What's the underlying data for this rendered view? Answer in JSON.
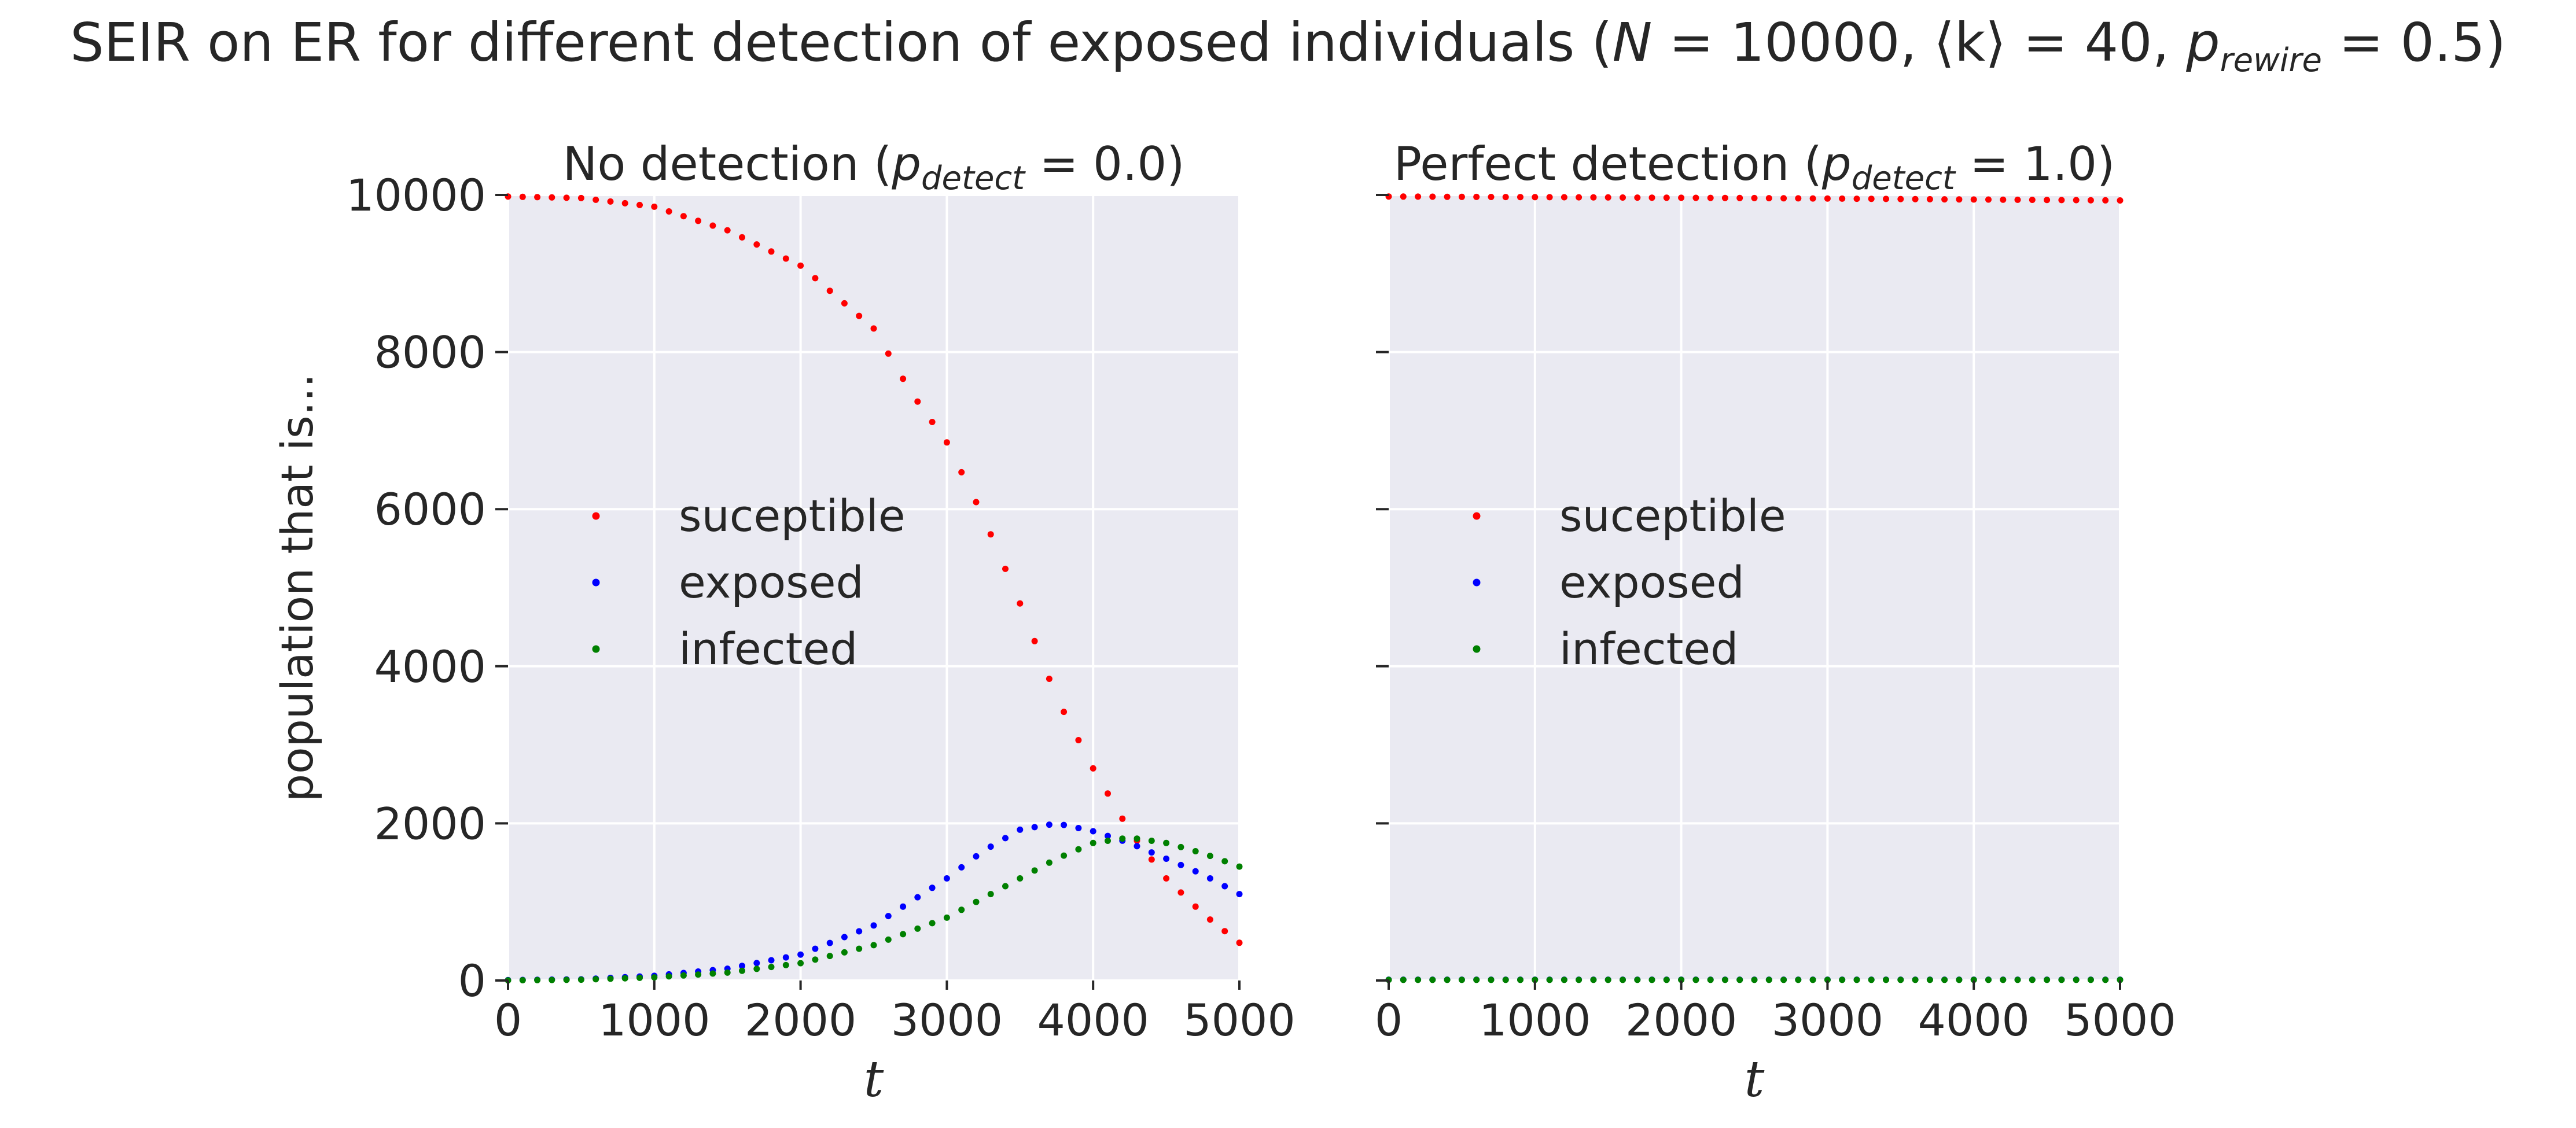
{
  "suptitle": {
    "prefix": "SEIR on ER for different detection of exposed individuals (",
    "n_var": "N",
    "n_eq": " = 10000, ",
    "k_term": "⟨k⟩",
    "k_eq": " = 40, ",
    "p_var": "p",
    "p_sub": "rewire",
    "p_eq": " = 0.5)"
  },
  "chart_data": [
    {
      "type": "scatter",
      "title_text": "No detection (",
      "title_var": "p",
      "title_sub": "detect",
      "title_eq": " = 0.0)",
      "xlabel": "t",
      "ylabel": "population that is...",
      "xlim": [
        0,
        5000
      ],
      "ylim": [
        0,
        10000
      ],
      "xticks": [
        0,
        1000,
        2000,
        3000,
        4000,
        5000
      ],
      "yticks": [
        0,
        2000,
        4000,
        6000,
        8000,
        10000
      ],
      "legend_position": "center-left",
      "grid": true,
      "series": [
        {
          "name": "suceptible",
          "color": "#ff0000",
          "x": [
            0,
            500,
            1000,
            1500,
            2000,
            2500,
            2750,
            3000,
            3250,
            3500,
            3750,
            4000,
            4250,
            4500,
            4750,
            5000
          ],
          "y": [
            9980,
            9960,
            9850,
            9550,
            9100,
            8300,
            7500,
            6850,
            5900,
            4800,
            3600,
            2700,
            1900,
            1300,
            850,
            480
          ]
        },
        {
          "name": "exposed",
          "color": "#0000ff",
          "x": [
            0,
            500,
            1000,
            1500,
            2000,
            2500,
            3000,
            3250,
            3500,
            3750,
            4000,
            4250,
            4500,
            4750,
            5000
          ],
          "y": [
            5,
            15,
            60,
            150,
            330,
            700,
            1300,
            1650,
            1920,
            2000,
            1900,
            1750,
            1550,
            1350,
            1100
          ]
        },
        {
          "name": "infected",
          "color": "#008000",
          "x": [
            0,
            500,
            1000,
            1500,
            2000,
            2500,
            3000,
            3250,
            3500,
            3750,
            4000,
            4250,
            4500,
            4750,
            5000
          ],
          "y": [
            2,
            10,
            40,
            100,
            220,
            450,
            800,
            1050,
            1300,
            1550,
            1750,
            1820,
            1750,
            1620,
            1450
          ]
        }
      ]
    },
    {
      "type": "scatter",
      "title_text": "Perfect detection (",
      "title_var": "p",
      "title_sub": "detect",
      "title_eq": " = 1.0)",
      "xlabel": "t",
      "xlim": [
        0,
        5000
      ],
      "ylim": [
        0,
        10000
      ],
      "xticks": [
        0,
        1000,
        2000,
        3000,
        4000,
        5000
      ],
      "yticks": [
        0,
        2000,
        4000,
        6000,
        8000,
        10000
      ],
      "legend_position": "center-left",
      "grid": true,
      "series": [
        {
          "name": "suceptible",
          "color": "#ff0000",
          "x": [
            0,
            2500,
            5000
          ],
          "y": [
            9980,
            9960,
            9930
          ]
        },
        {
          "name": "exposed",
          "color": "#0000ff",
          "x": [
            0,
            5000
          ],
          "y": [
            10,
            10
          ]
        },
        {
          "name": "infected",
          "color": "#008000",
          "x": [
            0,
            5000
          ],
          "y": [
            8,
            8
          ]
        }
      ]
    }
  ]
}
